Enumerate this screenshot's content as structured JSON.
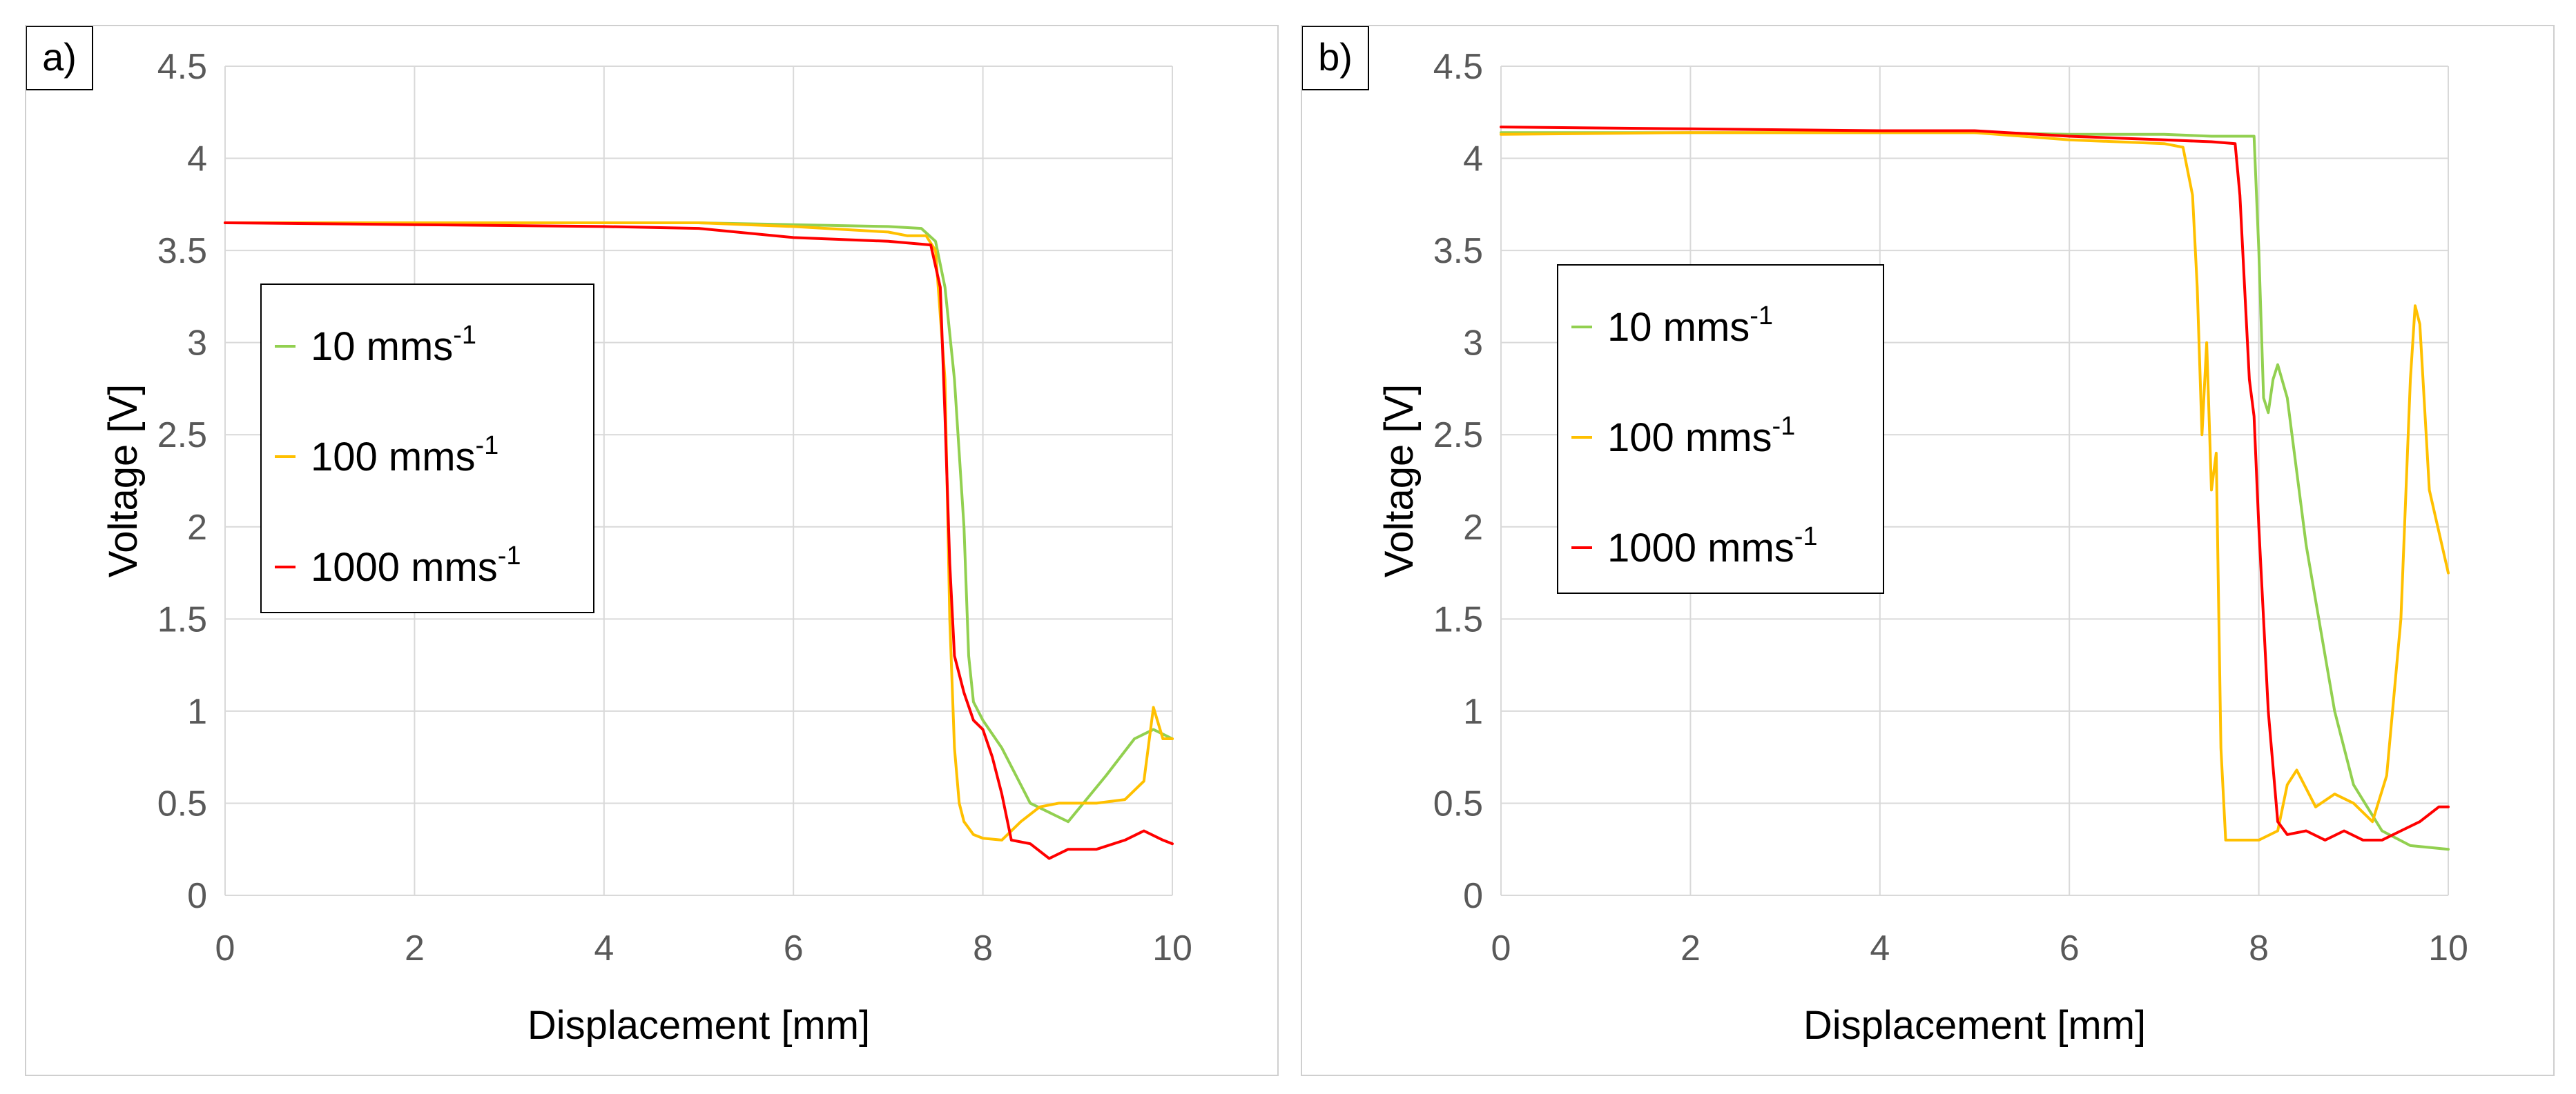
{
  "chart_data": [
    {
      "type": "line",
      "panel_label": "a)",
      "xlabel": "Displacement [mm]",
      "ylabel": "Voltage [V]",
      "xlim": [
        0,
        10
      ],
      "ylim": [
        0,
        4.5
      ],
      "xticks": [
        "0",
        "2",
        "4",
        "6",
        "8",
        "10"
      ],
      "yticks": [
        "0",
        "0.5",
        "1",
        "1.5",
        "2",
        "2.5",
        "3",
        "3.5",
        "4",
        "4.5"
      ],
      "grid": true,
      "legend_position": "left-middle",
      "series": [
        {
          "name": "10 mms",
          "name_sup": "-1",
          "color": "#92d050",
          "x": [
            0,
            2,
            4,
            5,
            6,
            7,
            7.35,
            7.5,
            7.6,
            7.7,
            7.8,
            7.85,
            7.9,
            8.0,
            8.2,
            8.5,
            8.9,
            9.3,
            9.6,
            9.8,
            10
          ],
          "y": [
            3.65,
            3.65,
            3.65,
            3.65,
            3.64,
            3.63,
            3.62,
            3.55,
            3.3,
            2.8,
            2.0,
            1.3,
            1.05,
            0.95,
            0.8,
            0.5,
            0.4,
            0.65,
            0.85,
            0.9,
            0.85
          ]
        },
        {
          "name": "100 mms",
          "name_sup": "-1",
          "color": "#ffc000",
          "x": [
            0,
            2,
            4,
            5,
            6,
            7,
            7.2,
            7.4,
            7.5,
            7.6,
            7.65,
            7.7,
            7.75,
            7.8,
            7.9,
            8.0,
            8.2,
            8.4,
            8.6,
            8.8,
            9.0,
            9.2,
            9.5,
            9.7,
            9.8,
            9.9,
            10
          ],
          "y": [
            3.65,
            3.65,
            3.65,
            3.65,
            3.63,
            3.6,
            3.58,
            3.58,
            3.5,
            2.8,
            1.5,
            0.8,
            0.5,
            0.4,
            0.33,
            0.31,
            0.3,
            0.4,
            0.48,
            0.5,
            0.5,
            0.5,
            0.52,
            0.62,
            1.02,
            0.85,
            0.85
          ]
        },
        {
          "name": "1000 mms",
          "name_sup": "-1",
          "color": "#ff0000",
          "x": [
            0,
            2,
            4,
            5,
            6,
            7,
            7.45,
            7.55,
            7.6,
            7.65,
            7.7,
            7.8,
            7.9,
            8.0,
            8.1,
            8.2,
            8.3,
            8.5,
            8.7,
            8.9,
            9.2,
            9.5,
            9.7,
            9.9,
            10
          ],
          "y": [
            3.65,
            3.64,
            3.63,
            3.62,
            3.57,
            3.55,
            3.53,
            3.3,
            2.6,
            1.8,
            1.3,
            1.1,
            0.95,
            0.9,
            0.75,
            0.55,
            0.3,
            0.28,
            0.2,
            0.25,
            0.25,
            0.3,
            0.35,
            0.3,
            0.28
          ]
        }
      ]
    },
    {
      "type": "line",
      "panel_label": "b)",
      "xlabel": "Displacement [mm]",
      "ylabel": "Voltage [V]",
      "xlim": [
        0,
        10
      ],
      "ylim": [
        0,
        4.5
      ],
      "xticks": [
        "0",
        "2",
        "4",
        "6",
        "8",
        "10"
      ],
      "yticks": [
        "0",
        "0.5",
        "1",
        "1.5",
        "2",
        "2.5",
        "3",
        "3.5",
        "4",
        "4.5"
      ],
      "grid": true,
      "legend_position": "left-middle",
      "series": [
        {
          "name": "10 mms",
          "name_sup": "-1",
          "color": "#92d050",
          "x": [
            0,
            2,
            4,
            5,
            6,
            7,
            7.5,
            7.95,
            8.0,
            8.05,
            8.1,
            8.15,
            8.2,
            8.3,
            8.5,
            8.8,
            9.0,
            9.3,
            9.6,
            10
          ],
          "y": [
            4.14,
            4.14,
            4.14,
            4.14,
            4.13,
            4.13,
            4.12,
            4.12,
            3.5,
            2.7,
            2.62,
            2.8,
            2.88,
            2.7,
            1.9,
            1.0,
            0.6,
            0.35,
            0.27,
            0.25
          ]
        },
        {
          "name": "100 mms",
          "name_sup": "-1",
          "color": "#ffc000",
          "x": [
            0,
            2,
            4,
            5,
            6,
            7,
            7.2,
            7.3,
            7.35,
            7.4,
            7.45,
            7.5,
            7.55,
            7.6,
            7.65,
            7.8,
            8.0,
            8.2,
            8.3,
            8.4,
            8.6,
            8.8,
            9.0,
            9.2,
            9.35,
            9.5,
            9.6,
            9.65,
            9.7,
            9.8,
            10
          ],
          "y": [
            4.13,
            4.14,
            4.14,
            4.14,
            4.1,
            4.08,
            4.06,
            3.8,
            3.3,
            2.5,
            3.0,
            2.2,
            2.4,
            0.8,
            0.3,
            0.3,
            0.3,
            0.35,
            0.6,
            0.68,
            0.48,
            0.55,
            0.5,
            0.4,
            0.65,
            1.5,
            2.8,
            3.2,
            3.1,
            2.2,
            1.75
          ]
        },
        {
          "name": "1000 mms",
          "name_sup": "-1",
          "color": "#ff0000",
          "x": [
            0,
            2,
            4,
            5,
            6,
            7,
            7.5,
            7.75,
            7.8,
            7.85,
            7.9,
            7.95,
            8.0,
            8.1,
            8.2,
            8.3,
            8.5,
            8.7,
            8.9,
            9.1,
            9.3,
            9.5,
            9.7,
            9.9,
            10
          ],
          "y": [
            4.17,
            4.16,
            4.15,
            4.15,
            4.12,
            4.1,
            4.09,
            4.08,
            3.8,
            3.3,
            2.8,
            2.6,
            2.0,
            1.0,
            0.4,
            0.33,
            0.35,
            0.3,
            0.35,
            0.3,
            0.3,
            0.35,
            0.4,
            0.48,
            0.48
          ]
        }
      ]
    }
  ]
}
